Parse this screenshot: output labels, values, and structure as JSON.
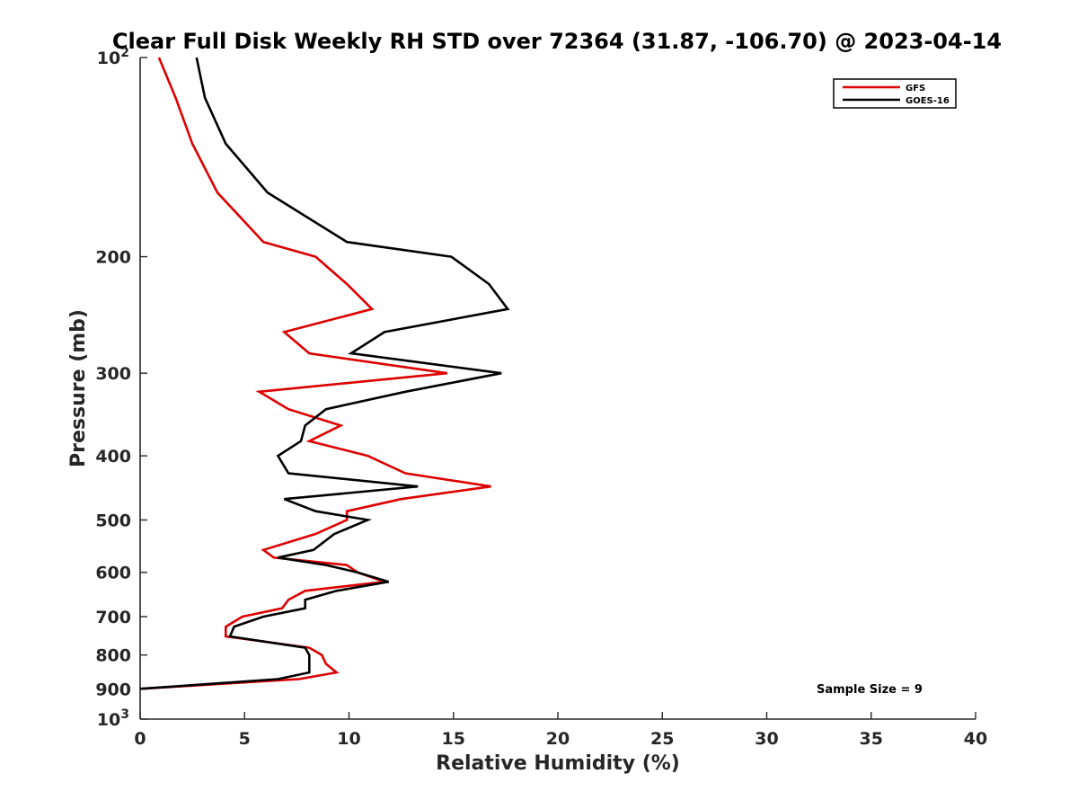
{
  "chart_data": {
    "type": "line",
    "title": "Clear Full Disk Weekly RH STD over 72364 (31.87, -106.70) @ 2023-04-14",
    "xlabel": "Relative Humidity (%)",
    "ylabel": "Pressure (mb)",
    "xlim": [
      0,
      40
    ],
    "ylim": [
      100,
      1000
    ],
    "yscale": "log",
    "y_reversed": true,
    "grid": false,
    "legend_position": "top-right",
    "x_ticks": [
      0,
      5,
      10,
      15,
      20,
      25,
      30,
      35,
      40
    ],
    "x_tick_labels": [
      "0",
      "5",
      "10",
      "15",
      "20",
      "25",
      "30",
      "35",
      "40"
    ],
    "y_ticks": [
      {
        "value": 100,
        "base": "10",
        "exp": "2"
      },
      {
        "value": 200,
        "label": "200"
      },
      {
        "value": 300,
        "label": "300"
      },
      {
        "value": 400,
        "label": "400"
      },
      {
        "value": 500,
        "label": "500"
      },
      {
        "value": 600,
        "label": "600"
      },
      {
        "value": 700,
        "label": "700"
      },
      {
        "value": 800,
        "label": "800"
      },
      {
        "value": 900,
        "label": "900"
      },
      {
        "value": 1000,
        "base": "10",
        "exp": "3"
      }
    ],
    "annotation": "Sample Size = 9",
    "series": [
      {
        "name": "GFS",
        "color": "#dd0000",
        "points": [
          [
            0.9,
            100
          ],
          [
            1.7,
            115
          ],
          [
            2.5,
            135
          ],
          [
            3.7,
            160
          ],
          [
            5.9,
            190
          ],
          [
            8.4,
            200
          ],
          [
            9.9,
            220
          ],
          [
            11.1,
            240
          ],
          [
            6.9,
            260
          ],
          [
            8.1,
            280
          ],
          [
            14.7,
            300
          ],
          [
            5.7,
            320
          ],
          [
            7.1,
            340
          ],
          [
            9.6,
            360
          ],
          [
            8.1,
            380
          ],
          [
            10.9,
            400
          ],
          [
            12.7,
            425
          ],
          [
            16.8,
            445
          ],
          [
            12.5,
            465
          ],
          [
            9.9,
            485
          ],
          [
            9.9,
            500
          ],
          [
            8.4,
            525
          ],
          [
            5.9,
            555
          ],
          [
            6.4,
            570
          ],
          [
            9.9,
            585
          ],
          [
            10.4,
            600
          ],
          [
            11.7,
            620
          ],
          [
            7.9,
            640
          ],
          [
            7.1,
            660
          ],
          [
            6.8,
            680
          ],
          [
            4.9,
            700
          ],
          [
            4.1,
            725
          ],
          [
            4.1,
            750
          ],
          [
            8.1,
            780
          ],
          [
            8.7,
            800
          ],
          [
            8.9,
            825
          ],
          [
            9.4,
            850
          ],
          [
            7.6,
            870
          ],
          [
            0.0,
            900
          ]
        ]
      },
      {
        "name": "GOES-16",
        "color": "#000000",
        "points": [
          [
            2.7,
            100
          ],
          [
            3.1,
            115
          ],
          [
            4.1,
            135
          ],
          [
            6.1,
            160
          ],
          [
            9.9,
            190
          ],
          [
            14.9,
            200
          ],
          [
            16.7,
            220
          ],
          [
            17.6,
            240
          ],
          [
            11.7,
            260
          ],
          [
            10.1,
            280
          ],
          [
            17.3,
            300
          ],
          [
            12.7,
            320
          ],
          [
            8.9,
            340
          ],
          [
            7.9,
            360
          ],
          [
            7.7,
            380
          ],
          [
            6.6,
            400
          ],
          [
            7.1,
            425
          ],
          [
            13.3,
            445
          ],
          [
            6.9,
            465
          ],
          [
            8.4,
            485
          ],
          [
            10.9,
            500
          ],
          [
            9.3,
            525
          ],
          [
            8.3,
            555
          ],
          [
            6.6,
            570
          ],
          [
            8.9,
            585
          ],
          [
            10.4,
            600
          ],
          [
            11.9,
            620
          ],
          [
            9.4,
            640
          ],
          [
            7.9,
            660
          ],
          [
            7.9,
            680
          ],
          [
            5.9,
            700
          ],
          [
            4.5,
            725
          ],
          [
            4.3,
            750
          ],
          [
            7.9,
            780
          ],
          [
            8.1,
            800
          ],
          [
            8.1,
            825
          ],
          [
            8.1,
            850
          ],
          [
            6.6,
            870
          ],
          [
            0.0,
            900
          ]
        ]
      }
    ]
  }
}
